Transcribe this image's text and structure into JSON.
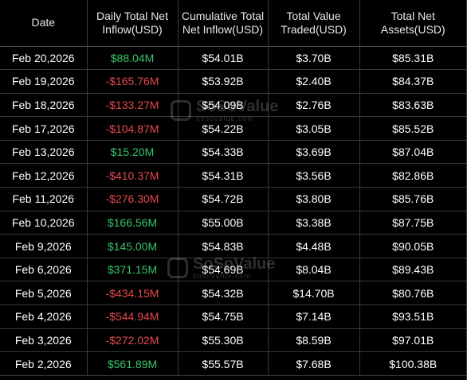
{
  "table": {
    "headers": [
      "Date",
      "Daily Total Net Inflow(USD)",
      "Cumulative Total Net Inflow(USD)",
      "Total Value Traded(USD)",
      "Total Net Assets(USD)"
    ],
    "rows": [
      {
        "date": "Feb 20,2026",
        "daily": "$88.04M",
        "daily_sign": "pos",
        "cumulative": "$54.01B",
        "traded": "$3.70B",
        "assets": "$85.31B"
      },
      {
        "date": "Feb 19,2026",
        "daily": "-$165.76M",
        "daily_sign": "neg",
        "cumulative": "$53.92B",
        "traded": "$2.40B",
        "assets": "$84.37B"
      },
      {
        "date": "Feb 18,2026",
        "daily": "-$133.27M",
        "daily_sign": "neg",
        "cumulative": "$54.09B",
        "traded": "$2.76B",
        "assets": "$83.63B"
      },
      {
        "date": "Feb 17,2026",
        "daily": "-$104.87M",
        "daily_sign": "neg",
        "cumulative": "$54.22B",
        "traded": "$3.05B",
        "assets": "$85.52B"
      },
      {
        "date": "Feb 13,2026",
        "daily": "$15.20M",
        "daily_sign": "pos",
        "cumulative": "$54.33B",
        "traded": "$3.69B",
        "assets": "$87.04B"
      },
      {
        "date": "Feb 12,2026",
        "daily": "-$410.37M",
        "daily_sign": "neg",
        "cumulative": "$54.31B",
        "traded": "$3.56B",
        "assets": "$82.86B"
      },
      {
        "date": "Feb 11,2026",
        "daily": "-$276.30M",
        "daily_sign": "neg",
        "cumulative": "$54.72B",
        "traded": "$3.80B",
        "assets": "$85.76B"
      },
      {
        "date": "Feb 10,2026",
        "daily": "$166.56M",
        "daily_sign": "pos",
        "cumulative": "$55.00B",
        "traded": "$3.38B",
        "assets": "$87.75B"
      },
      {
        "date": "Feb 9,2026",
        "daily": "$145.00M",
        "daily_sign": "pos",
        "cumulative": "$54.83B",
        "traded": "$4.48B",
        "assets": "$90.05B"
      },
      {
        "date": "Feb 6,2026",
        "daily": "$371.15M",
        "daily_sign": "pos",
        "cumulative": "$54.69B",
        "traded": "$8.04B",
        "assets": "$89.43B"
      },
      {
        "date": "Feb 5,2026",
        "daily": "-$434.15M",
        "daily_sign": "neg",
        "cumulative": "$54.32B",
        "traded": "$14.70B",
        "assets": "$80.76B"
      },
      {
        "date": "Feb 4,2026",
        "daily": "-$544.94M",
        "daily_sign": "neg",
        "cumulative": "$54.75B",
        "traded": "$7.14B",
        "assets": "$93.51B"
      },
      {
        "date": "Feb 3,2026",
        "daily": "-$272.02M",
        "daily_sign": "neg",
        "cumulative": "$55.30B",
        "traded": "$8.59B",
        "assets": "$97.01B"
      },
      {
        "date": "Feb 2,2026",
        "daily": "$561.89M",
        "daily_sign": "pos",
        "cumulative": "$55.57B",
        "traded": "$7.68B",
        "assets": "$100.38B"
      }
    ]
  },
  "watermark": {
    "brand": "SoSoValue",
    "domain": "sosovalue.com"
  },
  "colors": {
    "background": "#000000",
    "positive": "#38c46a",
    "negative": "#e5494d",
    "text": "#ffffff",
    "grid": "#3a3a3a"
  }
}
